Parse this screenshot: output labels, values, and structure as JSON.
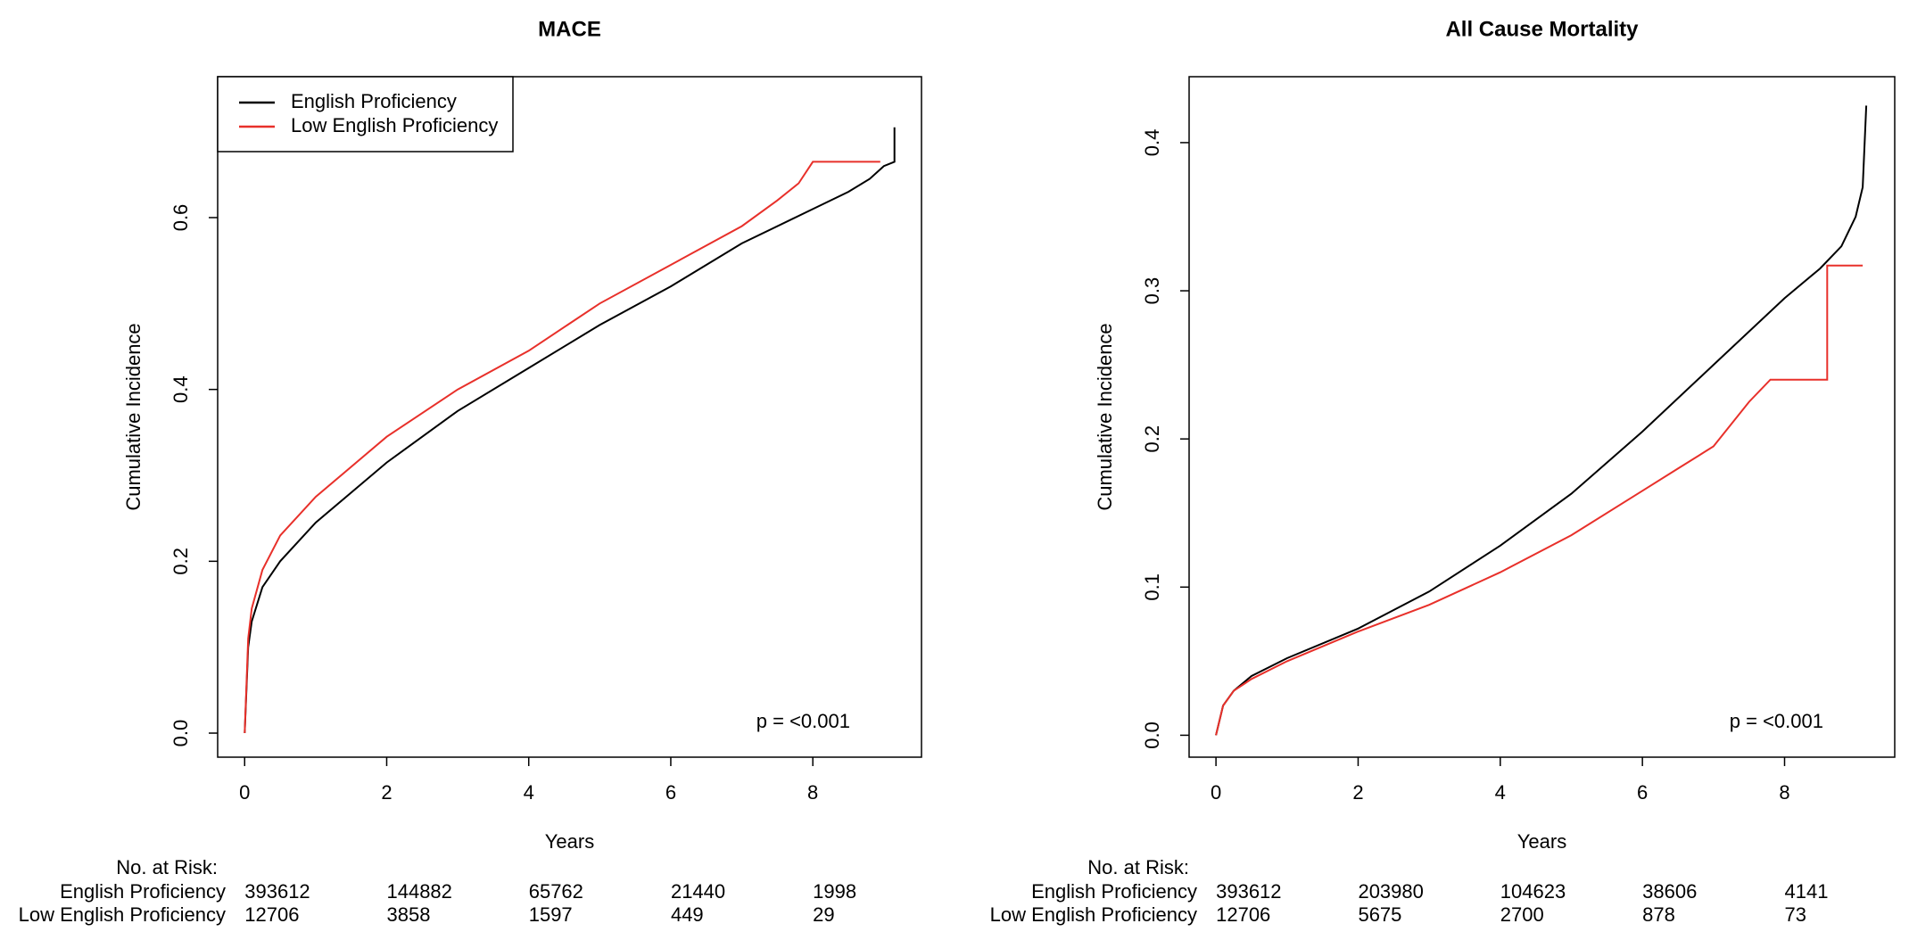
{
  "chart_data": [
    {
      "type": "line",
      "title": "MACE",
      "x_label": "Years",
      "y_label": "Cumulative Incidence",
      "xlim": [
        -0.38,
        9.53
      ],
      "ylim": [
        -0.028,
        0.764
      ],
      "xticks": [
        0,
        2,
        4,
        6,
        8
      ],
      "yticks": [
        {
          "value": 0,
          "label": "0.0"
        },
        0.2,
        0.4,
        0.6
      ],
      "legend": "top-left",
      "annotation": "p = <0.001",
      "series": [
        {
          "name": "English Proficiency",
          "color": "#000000",
          "x": [
            0,
            0.05,
            0.1,
            0.25,
            0.5,
            1,
            2,
            3,
            4,
            5,
            6,
            7,
            8,
            8.5,
            8.8,
            9.0,
            9.15,
            9.15
          ],
          "values": [
            0,
            0.1,
            0.13,
            0.17,
            0.2,
            0.245,
            0.315,
            0.375,
            0.425,
            0.475,
            0.52,
            0.57,
            0.61,
            0.63,
            0.645,
            0.66,
            0.665,
            0.705
          ]
        },
        {
          "name": "Low English Proficiency",
          "color": "#e8302a",
          "x": [
            0,
            0.05,
            0.1,
            0.25,
            0.5,
            1,
            2,
            3,
            4,
            5,
            6,
            7,
            7.5,
            7.8,
            8,
            8.95
          ],
          "values": [
            0,
            0.11,
            0.145,
            0.19,
            0.23,
            0.275,
            0.345,
            0.4,
            0.445,
            0.5,
            0.545,
            0.59,
            0.62,
            0.64,
            0.665,
            0.665
          ]
        }
      ],
      "risk_table": {
        "label": "No. at Risk:",
        "x": [
          0,
          2,
          4,
          6,
          8
        ],
        "rows": [
          {
            "name": "English Proficiency",
            "values": [
              393612,
              144882,
              65762,
              21440,
              1998
            ]
          },
          {
            "name": "Low English Proficiency",
            "values": [
              12706,
              3858,
              1597,
              449,
              29
            ]
          }
        ]
      }
    },
    {
      "type": "line",
      "title": "All Cause Mortality",
      "x_label": "Years",
      "y_label": "Cumulative Incidence",
      "xlim": [
        -0.378,
        9.55
      ],
      "ylim": [
        -0.0148,
        0.4445
      ],
      "xticks": [
        0,
        2,
        4,
        6,
        8
      ],
      "yticks": [
        {
          "value": 0,
          "label": "0.0"
        },
        0.1,
        0.2,
        0.3,
        0.4
      ],
      "annotation": "p = <0.001",
      "series": [
        {
          "color": "#000000",
          "x": [
            0,
            0.1,
            0.25,
            0.5,
            1,
            2,
            3,
            4,
            5,
            6,
            7,
            8,
            8.5,
            8.8,
            9.0,
            9.1,
            9.15
          ],
          "values": [
            0,
            0.02,
            0.03,
            0.04,
            0.052,
            0.072,
            0.097,
            0.128,
            0.163,
            0.205,
            0.25,
            0.295,
            0.315,
            0.33,
            0.35,
            0.37,
            0.425
          ]
        },
        {
          "color": "#e8302a",
          "x": [
            0,
            0.1,
            0.25,
            0.5,
            1,
            2,
            3,
            4,
            5,
            6,
            6.5,
            7,
            7.5,
            7.8,
            8.6,
            8.6,
            9.1
          ],
          "values": [
            0,
            0.02,
            0.03,
            0.038,
            0.05,
            0.07,
            0.088,
            0.11,
            0.135,
            0.165,
            0.18,
            0.195,
            0.225,
            0.24,
            0.24,
            0.317,
            0.317
          ]
        }
      ],
      "risk_table": {
        "label": "No. at Risk:",
        "x": [
          0,
          2,
          4,
          6,
          8
        ],
        "rows": [
          {
            "name": "English Proficiency",
            "values": [
              393612,
              203980,
              104623,
              38606,
              4141
            ]
          },
          {
            "name": "Low English Proficiency",
            "values": [
              12706,
              5675,
              2700,
              878,
              73
            ]
          }
        ]
      }
    }
  ]
}
